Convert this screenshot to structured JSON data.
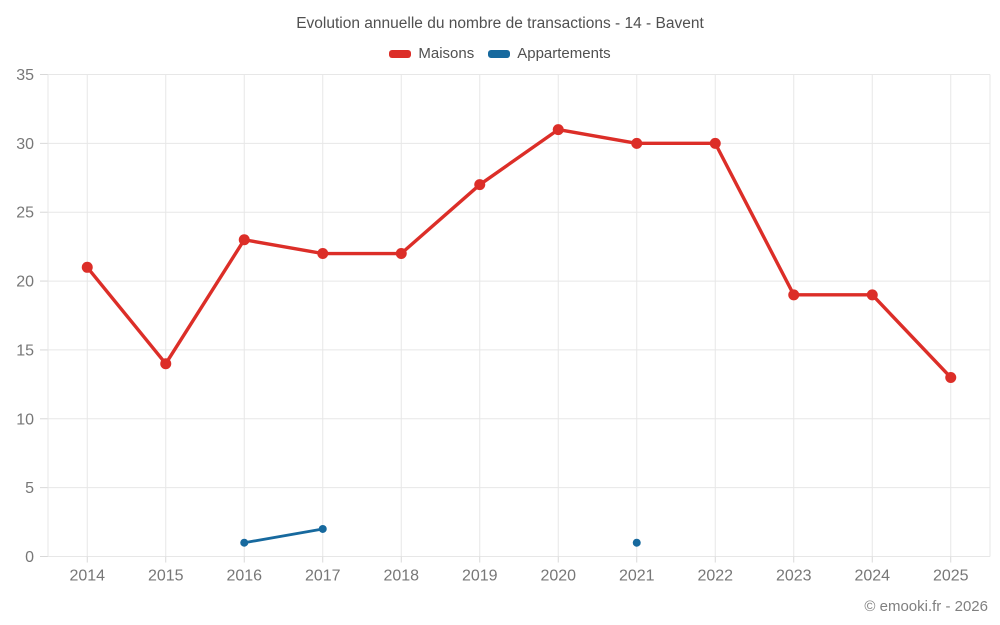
{
  "title": "Evolution annuelle du nombre de transactions - 14 - Bavent",
  "footer": "© emooki.fr - 2026",
  "colors": {
    "maisons": "#dc2e28",
    "appartements": "#17699e",
    "gridline": "#e7e7e7",
    "tick": "#d8d8d8",
    "axis_text": "#777777",
    "title_text": "#505050",
    "footer_text": "#808080"
  },
  "chart_data": {
    "type": "line",
    "categories": [
      "2014",
      "2015",
      "2016",
      "2017",
      "2018",
      "2019",
      "2020",
      "2021",
      "2022",
      "2023",
      "2024",
      "2025"
    ],
    "series": [
      {
        "name": "Maisons",
        "color": "#dc2e28",
        "line_width": 3.4,
        "point_radius": 5.5,
        "values": [
          21,
          14,
          23,
          22,
          22,
          27,
          31,
          30,
          30,
          19,
          19,
          13
        ]
      },
      {
        "name": "Appartements",
        "color": "#17699e",
        "line_width": 2.8,
        "point_radius": 4,
        "values": [
          null,
          null,
          1,
          2,
          null,
          null,
          null,
          1,
          null,
          null,
          null,
          null
        ]
      }
    ],
    "ylim": [
      0,
      35
    ],
    "yticks": [
      0,
      5,
      10,
      15,
      20,
      25,
      30,
      35
    ],
    "grid": true,
    "legend_position": "top",
    "xlabel": "",
    "ylabel": ""
  }
}
